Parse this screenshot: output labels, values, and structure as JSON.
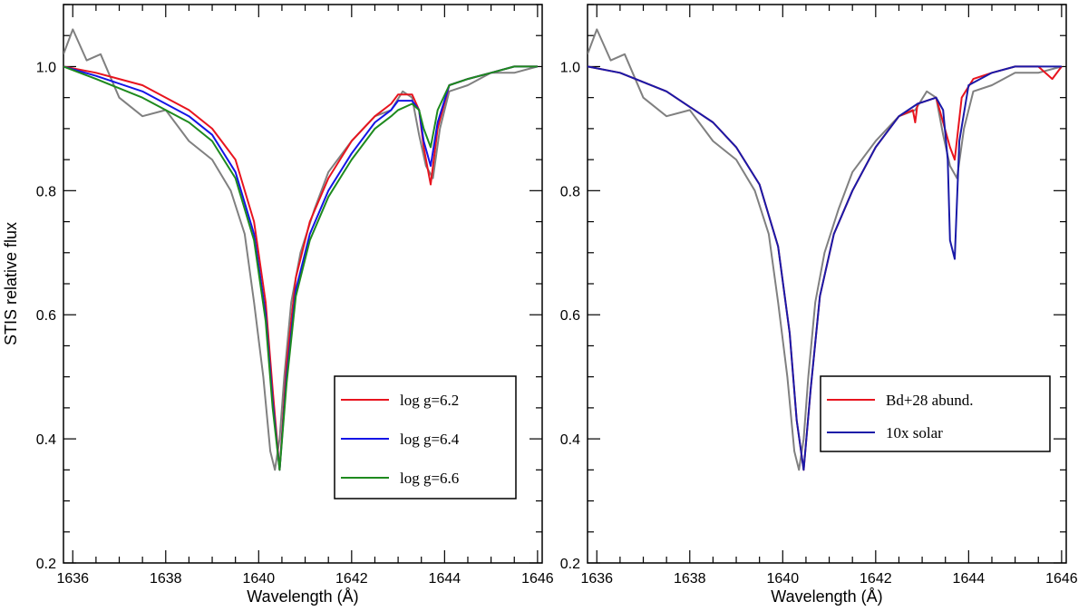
{
  "chart_data": [
    {
      "type": "line",
      "xlabel": "Wavelength (Å)",
      "ylabel": "STIS relative flux",
      "xlim": [
        1635.8,
        1646.1
      ],
      "ylim": [
        0.2,
        1.1
      ],
      "xticks": [
        1636,
        1638,
        1640,
        1642,
        1644,
        1646
      ],
      "xtick_labels": [
        "1636",
        "1638",
        "1640",
        "1642",
        "1644",
        "1646"
      ],
      "yticks": [
        0.2,
        0.4,
        0.6,
        0.8,
        1.0
      ],
      "ytick_labels": [
        "0.2",
        "0.4",
        "0.6",
        "0.8",
        "1.0"
      ],
      "legend": {
        "position": "lower-right"
      },
      "series": [
        {
          "name": "",
          "color": "#808080",
          "x": [
            1635.8,
            1636.0,
            1636.3,
            1636.6,
            1637.0,
            1637.5,
            1638.0,
            1638.5,
            1639.0,
            1639.4,
            1639.7,
            1639.9,
            1640.1,
            1640.25,
            1640.35,
            1640.45,
            1640.55,
            1640.7,
            1640.9,
            1641.2,
            1641.5,
            1642.0,
            1642.5,
            1642.85,
            1643.1,
            1643.3,
            1643.45,
            1643.6,
            1643.75,
            1643.9,
            1644.1,
            1644.5,
            1645.0,
            1645.5,
            1646.0
          ],
          "y": [
            1.02,
            1.06,
            1.01,
            1.02,
            0.95,
            0.92,
            0.93,
            0.88,
            0.85,
            0.8,
            0.73,
            0.62,
            0.5,
            0.38,
            0.35,
            0.4,
            0.5,
            0.62,
            0.7,
            0.77,
            0.83,
            0.88,
            0.92,
            0.93,
            0.96,
            0.95,
            0.89,
            0.84,
            0.82,
            0.9,
            0.96,
            0.97,
            0.99,
            0.99,
            1.0
          ]
        },
        {
          "name": "log g=6.2",
          "color": "#e8141e",
          "x": [
            1635.8,
            1636.5,
            1637.5,
            1638.5,
            1639.0,
            1639.5,
            1639.9,
            1640.15,
            1640.3,
            1640.45,
            1640.6,
            1640.8,
            1641.1,
            1641.5,
            1642.0,
            1642.5,
            1642.85,
            1643.0,
            1643.3,
            1643.45,
            1643.55,
            1643.7,
            1643.85,
            1644.1,
            1644.5,
            1645.0,
            1645.5,
            1646.0
          ],
          "y": [
            1.0,
            0.99,
            0.97,
            0.93,
            0.9,
            0.85,
            0.75,
            0.62,
            0.48,
            0.35,
            0.52,
            0.66,
            0.75,
            0.82,
            0.88,
            0.92,
            0.94,
            0.955,
            0.955,
            0.93,
            0.87,
            0.81,
            0.9,
            0.97,
            0.98,
            0.99,
            1.0,
            1.0
          ]
        },
        {
          "name": "log g=6.4",
          "color": "#1414e6",
          "x": [
            1635.8,
            1636.5,
            1637.5,
            1638.5,
            1639.0,
            1639.5,
            1639.9,
            1640.15,
            1640.3,
            1640.45,
            1640.6,
            1640.8,
            1641.1,
            1641.5,
            1642.0,
            1642.5,
            1642.85,
            1643.0,
            1643.3,
            1643.45,
            1643.55,
            1643.7,
            1643.85,
            1644.1,
            1644.5,
            1645.0,
            1645.5,
            1646.0
          ],
          "y": [
            1.0,
            0.985,
            0.96,
            0.92,
            0.89,
            0.83,
            0.73,
            0.6,
            0.46,
            0.35,
            0.5,
            0.64,
            0.73,
            0.8,
            0.86,
            0.91,
            0.93,
            0.945,
            0.945,
            0.93,
            0.88,
            0.84,
            0.91,
            0.97,
            0.98,
            0.99,
            1.0,
            1.0
          ]
        },
        {
          "name": "log g=6.6",
          "color": "#1e8a1e",
          "x": [
            1635.8,
            1636.5,
            1637.5,
            1638.5,
            1639.0,
            1639.5,
            1639.9,
            1640.15,
            1640.3,
            1640.45,
            1640.6,
            1640.8,
            1641.1,
            1641.5,
            1642.0,
            1642.5,
            1642.85,
            1643.0,
            1643.3,
            1643.45,
            1643.55,
            1643.7,
            1643.85,
            1644.1,
            1644.5,
            1645.0,
            1645.5,
            1646.0
          ],
          "y": [
            1.0,
            0.98,
            0.95,
            0.91,
            0.88,
            0.82,
            0.72,
            0.59,
            0.45,
            0.35,
            0.49,
            0.63,
            0.72,
            0.79,
            0.85,
            0.9,
            0.92,
            0.93,
            0.94,
            0.93,
            0.9,
            0.87,
            0.93,
            0.97,
            0.98,
            0.99,
            1.0,
            1.0
          ]
        }
      ]
    },
    {
      "type": "line",
      "xlabel": "Wavelength (Å)",
      "ylabel": "",
      "xlim": [
        1635.8,
        1646.1
      ],
      "ylim": [
        0.2,
        1.1
      ],
      "xticks": [
        1636,
        1638,
        1640,
        1642,
        1644,
        1646
      ],
      "xtick_labels": [
        "1636",
        "1638",
        "1640",
        "1642",
        "1644",
        "1646"
      ],
      "yticks": [
        0.2,
        0.4,
        0.6,
        0.8,
        1.0
      ],
      "ytick_labels": [
        "0.2",
        "0.4",
        "0.6",
        "0.8",
        "1.0"
      ],
      "legend": {
        "position": "lower-right"
      },
      "series": [
        {
          "name": "",
          "color": "#808080",
          "x": [
            1635.8,
            1636.0,
            1636.3,
            1636.6,
            1637.0,
            1637.5,
            1638.0,
            1638.5,
            1639.0,
            1639.4,
            1639.7,
            1639.9,
            1640.1,
            1640.25,
            1640.35,
            1640.45,
            1640.55,
            1640.7,
            1640.9,
            1641.2,
            1641.5,
            1642.0,
            1642.5,
            1642.85,
            1643.1,
            1643.3,
            1643.45,
            1643.6,
            1643.75,
            1643.9,
            1644.1,
            1644.5,
            1645.0,
            1645.5,
            1646.0
          ],
          "y": [
            1.02,
            1.06,
            1.01,
            1.02,
            0.95,
            0.92,
            0.93,
            0.88,
            0.85,
            0.8,
            0.73,
            0.62,
            0.5,
            0.38,
            0.35,
            0.4,
            0.5,
            0.62,
            0.7,
            0.77,
            0.83,
            0.88,
            0.92,
            0.93,
            0.96,
            0.95,
            0.89,
            0.84,
            0.82,
            0.9,
            0.96,
            0.97,
            0.99,
            0.99,
            1.0
          ]
        },
        {
          "name": "Bd+28 abund.",
          "color": "#e8141e",
          "x": [
            1635.8,
            1636.5,
            1637.5,
            1638.5,
            1639.0,
            1639.5,
            1639.9,
            1640.15,
            1640.3,
            1640.45,
            1640.6,
            1640.8,
            1641.1,
            1641.5,
            1642.0,
            1642.5,
            1642.8,
            1642.85,
            1642.9,
            1643.3,
            1643.45,
            1643.6,
            1643.7,
            1643.85,
            1644.1,
            1644.5,
            1645.0,
            1645.5,
            1645.8,
            1646.0
          ],
          "y": [
            1.0,
            0.99,
            0.96,
            0.91,
            0.87,
            0.81,
            0.71,
            0.57,
            0.43,
            0.35,
            0.48,
            0.63,
            0.73,
            0.8,
            0.87,
            0.92,
            0.93,
            0.91,
            0.94,
            0.95,
            0.91,
            0.87,
            0.85,
            0.95,
            0.98,
            0.99,
            1.0,
            1.0,
            0.98,
            1.0
          ]
        },
        {
          "name": "10x solar",
          "color": "#1a1aa8",
          "x": [
            1635.8,
            1636.5,
            1637.5,
            1638.5,
            1639.0,
            1639.5,
            1639.9,
            1640.15,
            1640.3,
            1640.45,
            1640.6,
            1640.8,
            1641.1,
            1641.5,
            1642.0,
            1642.5,
            1642.9,
            1643.3,
            1643.45,
            1643.55,
            1643.6,
            1643.7,
            1643.8,
            1644.0,
            1644.5,
            1645.0,
            1645.5,
            1646.0
          ],
          "y": [
            1.0,
            0.99,
            0.96,
            0.91,
            0.87,
            0.81,
            0.71,
            0.57,
            0.43,
            0.35,
            0.48,
            0.63,
            0.73,
            0.8,
            0.87,
            0.92,
            0.94,
            0.95,
            0.93,
            0.85,
            0.72,
            0.69,
            0.88,
            0.97,
            0.99,
            1.0,
            1.0,
            1.0
          ]
        }
      ]
    }
  ]
}
